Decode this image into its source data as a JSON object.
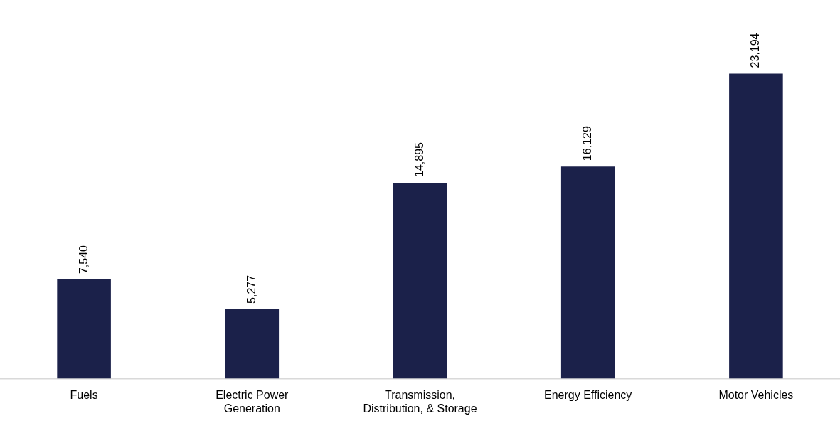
{
  "chart_data": {
    "type": "bar",
    "categories": [
      "Fuels",
      "Electric Power Generation",
      "Transmission, Distribution, & Storage",
      "Energy Efficiency",
      "Motor Vehicles"
    ],
    "values": [
      7540,
      5277,
      14895,
      16129,
      23194
    ],
    "value_labels": [
      "7,540",
      "5,277",
      "14,895",
      "16,129",
      "23,194"
    ],
    "color": "#1b214a"
  }
}
